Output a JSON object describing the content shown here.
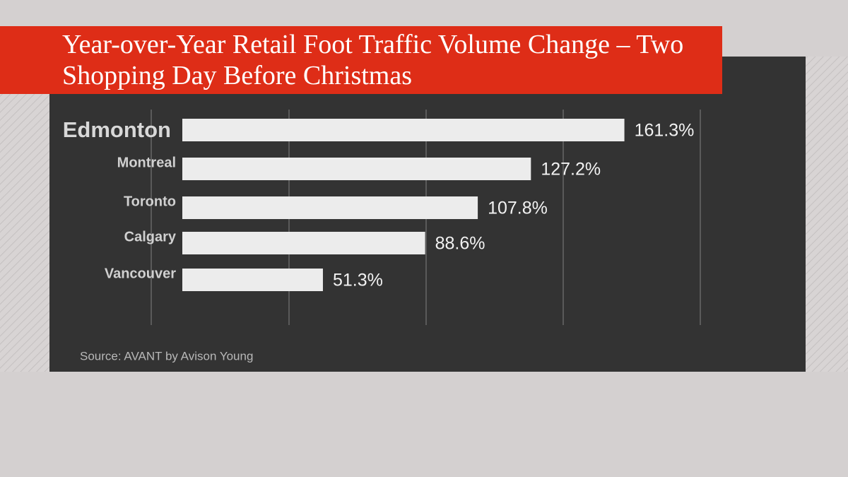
{
  "chart_data": {
    "type": "bar",
    "orientation": "horizontal",
    "title": "Year-over-Year Retail Foot Traffic Volume Change – Two Shopping Day Before Christmas",
    "categories": [
      "Edmonton",
      "Montreal",
      "Toronto",
      "Calgary",
      "Vancouver"
    ],
    "values": [
      161.3,
      127.2,
      107.8,
      88.6,
      51.3
    ],
    "value_labels": [
      "161.3%",
      "127.2%",
      "107.8%",
      "88.6%",
      "51.3%"
    ],
    "color": "#ececec",
    "xlim": [
      0,
      189
    ],
    "highlight_category": "Edmonton",
    "source": "Source: AVANT by Avison Young"
  }
}
